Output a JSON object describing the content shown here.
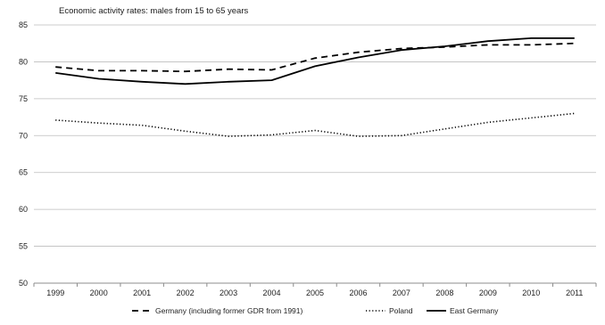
{
  "chart_data": {
    "type": "line",
    "title": "Economic activity rates: males from 15 to 65 years",
    "xlabel": "",
    "ylabel": "",
    "categories": [
      "1999",
      "2000",
      "2001",
      "2002",
      "2003",
      "2004",
      "2005",
      "2006",
      "2007",
      "2008",
      "2009",
      "2010",
      "2011"
    ],
    "ylim": [
      50,
      85
    ],
    "yticks": [
      "50",
      "55",
      "60",
      "65",
      "70",
      "75",
      "80",
      "85"
    ],
    "grid": "horizontal",
    "legend_position": "bottom",
    "series": [
      {
        "name": "Germany (including  former GDR from 1991)",
        "style": "dashed",
        "color": "#000000",
        "values": [
          79.3,
          78.8,
          78.8,
          78.7,
          79.0,
          78.9,
          80.5,
          81.3,
          81.8,
          82.0,
          82.3,
          82.3,
          82.5
        ]
      },
      {
        "name": "Poland",
        "style": "dotted",
        "color": "#000000",
        "values": [
          72.1,
          71.7,
          71.4,
          70.6,
          69.9,
          70.1,
          70.7,
          69.9,
          70.0,
          70.9,
          71.8,
          72.4,
          73.0
        ]
      },
      {
        "name": "East Germany",
        "style": "solid",
        "color": "#000000",
        "values": [
          78.5,
          77.7,
          77.3,
          77.0,
          77.3,
          77.5,
          79.4,
          80.6,
          81.6,
          82.1,
          82.8,
          83.2,
          83.2
        ]
      }
    ]
  }
}
